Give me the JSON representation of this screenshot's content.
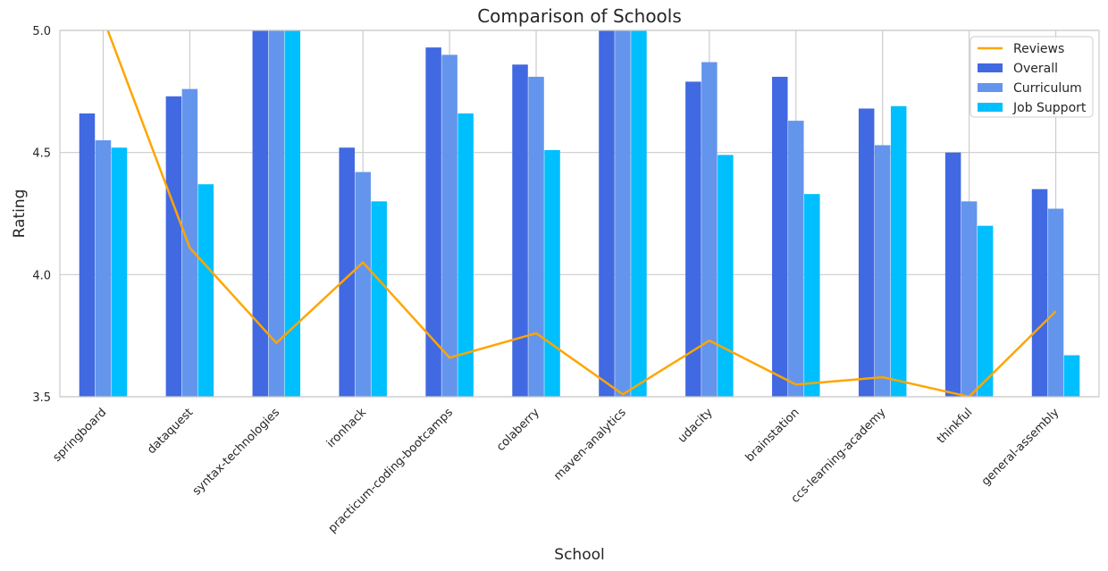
{
  "chart_data": {
    "type": "bar",
    "title": "Comparison of Schools",
    "xlabel": "School",
    "ylabel": "Rating",
    "ylim": [
      3.5,
      5.0
    ],
    "yticks": [
      "3.5",
      "4.0",
      "4.5",
      "5.0"
    ],
    "grid": true,
    "legend_position": "top-right",
    "categories": [
      "springboard",
      "dataquest",
      "syntax-technologies",
      "ironhack",
      "practicum-coding-bootcamps",
      "colaberry",
      "maven-analytics",
      "udacity",
      "brainstation",
      "ccs-learning-academy",
      "thinkful",
      "general-assembly"
    ],
    "series": [
      {
        "name": "Overall",
        "kind": "bar",
        "color": "#4169e1",
        "values": [
          4.66,
          4.73,
          5.0,
          4.52,
          4.93,
          4.86,
          5.0,
          4.79,
          4.81,
          4.68,
          4.5,
          4.35
        ]
      },
      {
        "name": "Curriculum",
        "kind": "bar",
        "color": "#6495ed",
        "values": [
          4.55,
          4.76,
          5.0,
          4.42,
          4.9,
          4.81,
          5.0,
          4.87,
          4.63,
          4.53,
          4.3,
          4.27
        ]
      },
      {
        "name": "Job Support",
        "kind": "bar",
        "color": "#00bfff",
        "values": [
          4.52,
          4.37,
          5.0,
          4.3,
          4.66,
          4.51,
          5.0,
          4.49,
          4.33,
          4.69,
          4.2,
          3.67
        ]
      },
      {
        "name": "Reviews",
        "kind": "line",
        "color": "#ffa500",
        "values": [
          5.05,
          4.11,
          3.72,
          4.05,
          3.66,
          3.76,
          3.51,
          3.73,
          3.55,
          3.58,
          3.5,
          3.85
        ]
      }
    ]
  }
}
